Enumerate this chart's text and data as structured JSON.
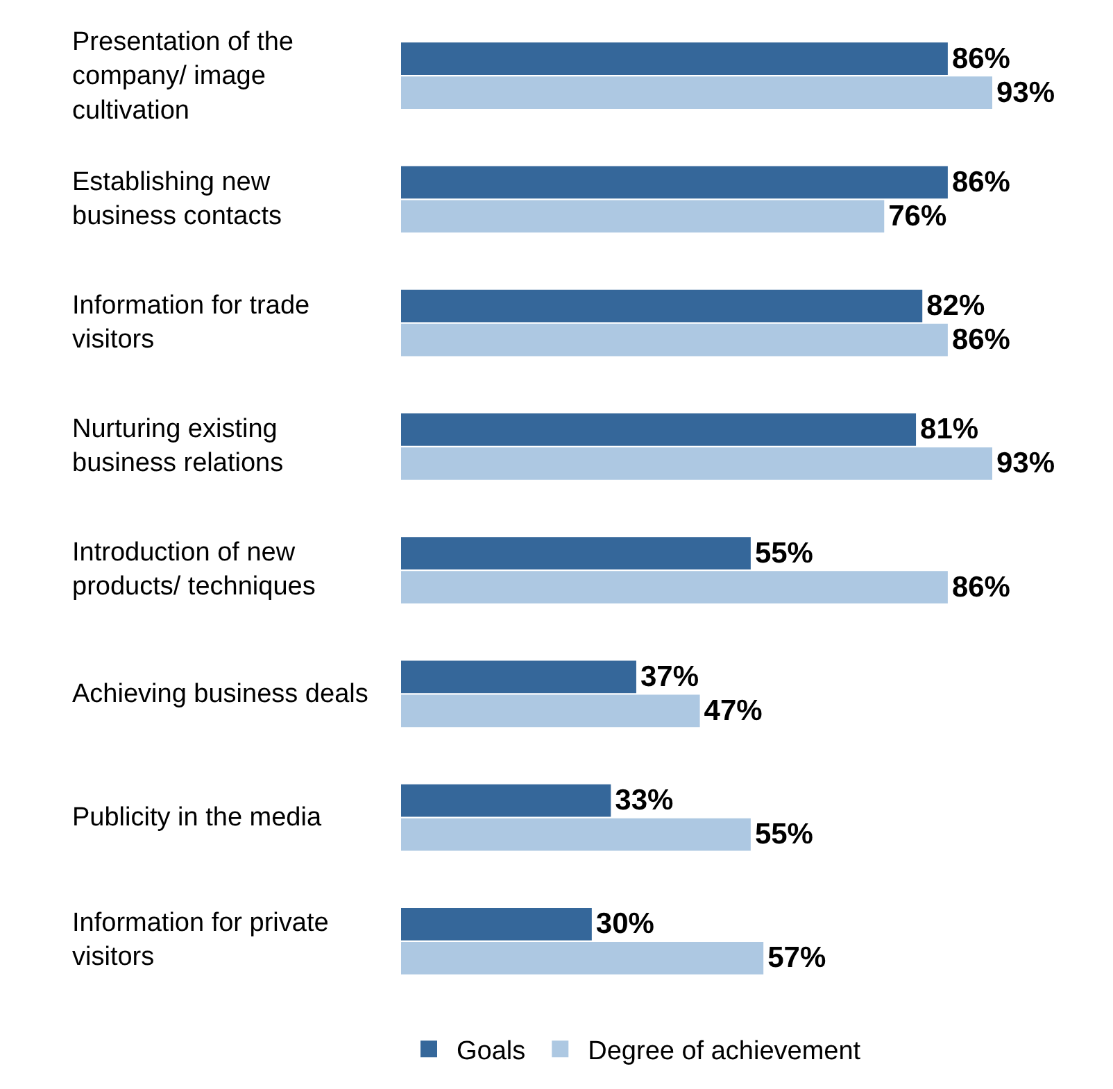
{
  "chart_data": {
    "type": "bar",
    "orientation": "horizontal",
    "categories": [
      "Presentation of the company/ image cultivation",
      "Establishing new business contacts",
      "Information for trade visitors",
      "Nurturing existing business relations",
      "Introduction of new products/ techniques",
      "Achieving business deals",
      "Publicity in the media",
      "Information for private visitors"
    ],
    "series": [
      {
        "name": "Goals",
        "color": "#35679a",
        "values": [
          86,
          86,
          82,
          81,
          55,
          37,
          33,
          30
        ],
        "value_labels": [
          "86%",
          "86%",
          "82%",
          "81%",
          "55%",
          "37%",
          "33%",
          "30%"
        ]
      },
      {
        "name": "Degree of achievement",
        "color": "#adc8e2",
        "values": [
          93,
          76,
          86,
          93,
          86,
          47,
          55,
          57
        ],
        "value_labels": [
          "93%",
          "76%",
          "86%",
          "93%",
          "86%",
          "47%",
          "55%",
          "57%"
        ]
      }
    ],
    "legend": "bottom"
  }
}
